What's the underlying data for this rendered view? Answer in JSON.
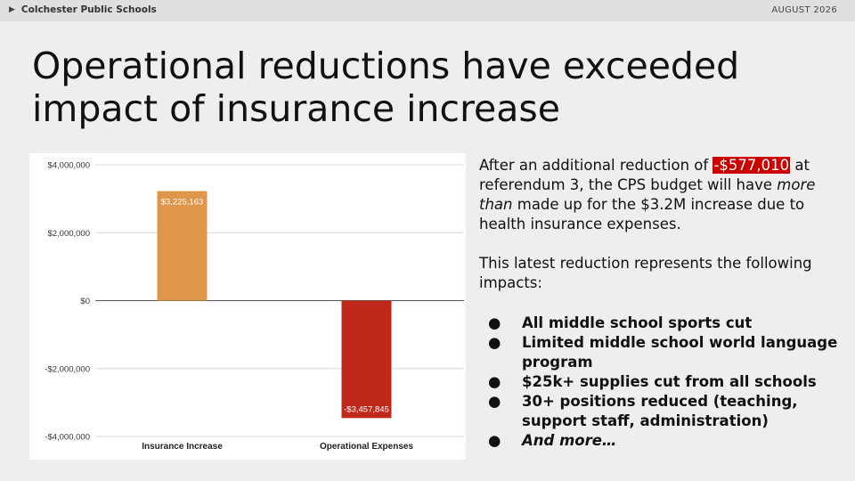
{
  "header": {
    "organization": "Colchester Public Schools",
    "date": "AUGUST 2026",
    "play_icon": "play-triangle-icon"
  },
  "slide": {
    "title": "Operational reductions have exceeded impact of insurance increase",
    "paragraph1": {
      "before": "After an additional reduction of ",
      "highlight": "-$577,010",
      "after": " at referendum 3, the CPS budget will have ",
      "emphasis": "more than",
      "end": " made up for the $3.2M increase due to health insurance expenses."
    },
    "paragraph2": "This latest reduction represents the following impacts:",
    "bullets": [
      {
        "text": "All middle school sports cut",
        "italic": false
      },
      {
        "text": "Limited middle school world language program",
        "italic": false
      },
      {
        "text": "$25k+ supplies cut from all schools",
        "italic": false
      },
      {
        "text": "30+ positions reduced (teaching, support staff, administration)",
        "italic": false
      },
      {
        "text": "And more…",
        "italic": true
      }
    ],
    "bullet_glyph": "●",
    "highlight_color": "#cc0000"
  },
  "chart_data": {
    "type": "bar",
    "categories": [
      "Insurance Increase",
      "Operational Expenses"
    ],
    "values": [
      3225163,
      -3457845
    ],
    "data_labels": [
      "$3,225,163",
      "-$3,457,845"
    ],
    "colors": [
      "#e0964a",
      "#c0281c"
    ],
    "ylim": [
      -4000000,
      4000000
    ],
    "yticks": [
      4000000,
      2000000,
      0,
      -2000000,
      -4000000
    ],
    "ytick_labels": [
      "$4,000,000",
      "$2,000,000",
      "$0",
      "-$2,000,000",
      "-$4,000,000"
    ],
    "title": "",
    "xlabel": "",
    "ylabel": "",
    "grid": true,
    "legend": "none"
  }
}
